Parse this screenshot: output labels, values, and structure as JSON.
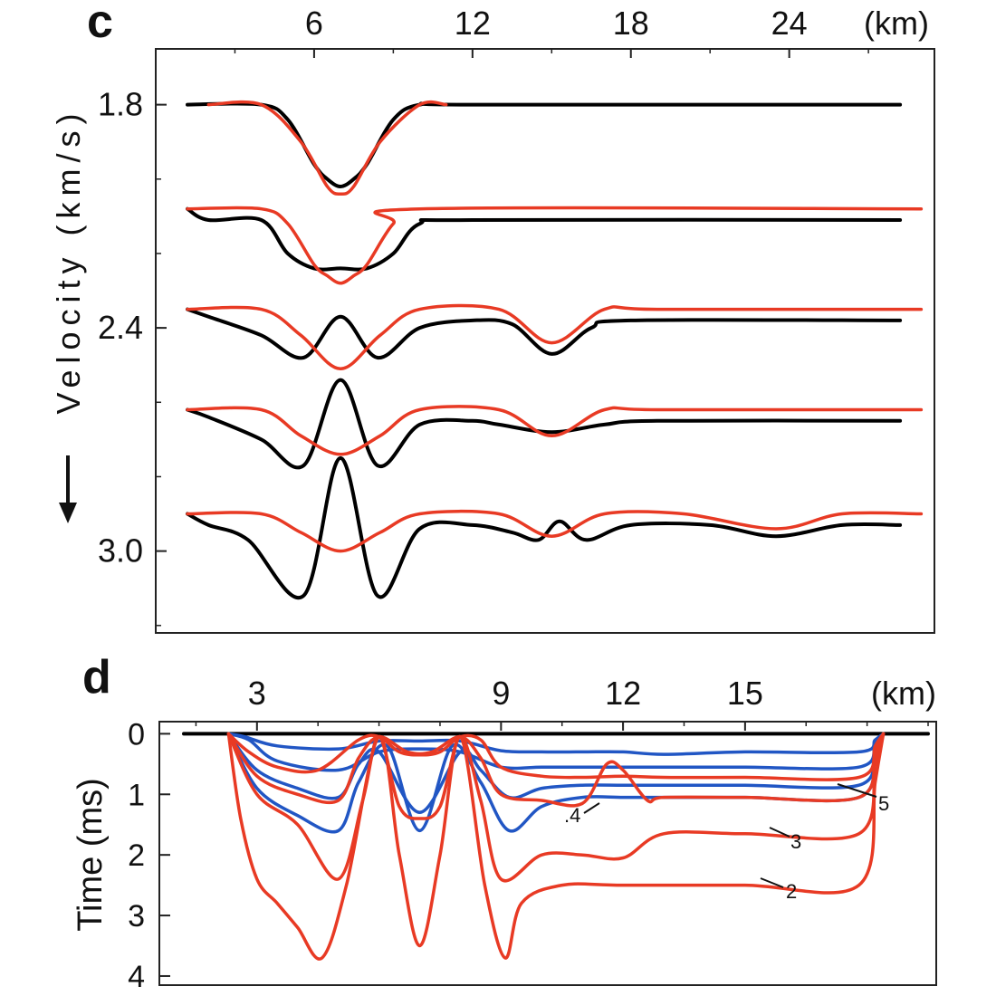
{
  "colors": {
    "red": "#e83a24",
    "black": "#000000",
    "blue": "#2156c4",
    "axis": "#222222"
  },
  "chart_data": [
    {
      "panel": "c",
      "type": "line",
      "panel_label": "c",
      "xlabel": "(km)",
      "ylabel": "Velocity (km/s)",
      "xticks": [
        6,
        12,
        18,
        24
      ],
      "xlim": [
        0,
        29.5
      ],
      "yticks": [
        1.8,
        2.4,
        3.0
      ],
      "ylim": [
        1.65,
        3.22
      ],
      "direction_icon": "down-arrow-icon",
      "series": [
        {
          "name": "trace1-black",
          "color": "black",
          "x": [
            1.2,
            4,
            5,
            6,
            6.5,
            7,
            7.5,
            8,
            9,
            10,
            12,
            28.2
          ],
          "y": [
            1.8,
            1.8,
            1.84,
            1.96,
            2.0,
            2.02,
            2.0,
            1.96,
            1.84,
            1.8,
            1.8,
            1.8
          ]
        },
        {
          "name": "trace1-red",
          "color": "red",
          "x": [
            2,
            4,
            5.5,
            6.5,
            7,
            7.5,
            8.5,
            10,
            11
          ],
          "y": [
            1.8,
            1.8,
            1.9,
            2.02,
            2.04,
            2.02,
            1.9,
            1.8,
            1.8
          ]
        },
        {
          "name": "trace2-black",
          "color": "black",
          "x": [
            1.2,
            2,
            4,
            5,
            6,
            7,
            8,
            9,
            10,
            12,
            28.2
          ],
          "y": [
            2.08,
            2.11,
            2.11,
            2.2,
            2.24,
            2.24,
            2.24,
            2.2,
            2.12,
            2.11,
            2.11
          ]
        },
        {
          "name": "trace2-red",
          "color": "red",
          "x": [
            1.2,
            4,
            5,
            6,
            6.5,
            7,
            7.5,
            8,
            9,
            10,
            29
          ],
          "y": [
            2.08,
            2.08,
            2.12,
            2.23,
            2.26,
            2.28,
            2.26,
            2.23,
            2.12,
            2.08,
            2.08
          ]
        },
        {
          "name": "trace3-black",
          "color": "black",
          "x": [
            1.2,
            2,
            4,
            5.6,
            7,
            8.4,
            10,
            12,
            13.5,
            15,
            16.5,
            18,
            28.2
          ],
          "y": [
            2.35,
            2.37,
            2.42,
            2.48,
            2.37,
            2.48,
            2.4,
            2.38,
            2.39,
            2.47,
            2.4,
            2.38,
            2.38
          ]
        },
        {
          "name": "trace3-red",
          "color": "red",
          "x": [
            1.2,
            4,
            5.5,
            7,
            8.5,
            10,
            13,
            15,
            17,
            19,
            29
          ],
          "y": [
            2.35,
            2.35,
            2.42,
            2.51,
            2.42,
            2.35,
            2.35,
            2.44,
            2.35,
            2.35,
            2.35
          ]
        },
        {
          "name": "trace4-black",
          "color": "black",
          "x": [
            1.2,
            2,
            4,
            5.6,
            7,
            8.4,
            10,
            12,
            13,
            15,
            17,
            19,
            28.2
          ],
          "y": [
            2.62,
            2.64,
            2.7,
            2.77,
            2.54,
            2.77,
            2.66,
            2.65,
            2.66,
            2.68,
            2.66,
            2.65,
            2.65
          ]
        },
        {
          "name": "trace4-red",
          "color": "red",
          "x": [
            1.2,
            4,
            5.5,
            7,
            8.5,
            10,
            13,
            15,
            17,
            19,
            29
          ],
          "y": [
            2.62,
            2.62,
            2.69,
            2.74,
            2.69,
            2.62,
            2.62,
            2.69,
            2.62,
            2.62,
            2.62
          ]
        },
        {
          "name": "trace5-black",
          "color": "black",
          "x": [
            1.2,
            2,
            3.5,
            5.6,
            7,
            8.4,
            10,
            12,
            13.5,
            14.5,
            15.3,
            16.3,
            18,
            21,
            23.5,
            26,
            28.2
          ],
          "y": [
            2.9,
            2.93,
            2.97,
            3.12,
            2.75,
            3.12,
            2.94,
            2.93,
            2.95,
            2.97,
            2.92,
            2.97,
            2.93,
            2.93,
            2.96,
            2.93,
            2.93
          ]
        },
        {
          "name": "trace5-red",
          "color": "red",
          "x": [
            1.2,
            4,
            5.5,
            7,
            8.5,
            10,
            13,
            15,
            17,
            20,
            23.5,
            26,
            29
          ],
          "y": [
            2.9,
            2.9,
            2.95,
            3.0,
            2.95,
            2.9,
            2.9,
            2.96,
            2.9,
            2.9,
            2.94,
            2.9,
            2.9
          ]
        }
      ]
    },
    {
      "panel": "d",
      "type": "line",
      "panel_label": "d",
      "xlabel": "(km)",
      "ylabel": "Time  (ms)",
      "xticks": [
        3,
        9,
        12,
        15
      ],
      "xlim": [
        0.6,
        19.7
      ],
      "yticks": [
        0,
        1,
        2,
        3,
        4
      ],
      "ylim": [
        -0.2,
        4.15
      ],
      "annotations": [
        "2",
        "3",
        ".4",
        "5"
      ],
      "series": [
        {
          "name": "zero-line",
          "color": "black",
          "x": [
            1.2,
            19.5
          ],
          "y": [
            0,
            0
          ]
        },
        {
          "name": "blue-1",
          "color": "blue",
          "x": [
            2.3,
            2.7,
            3.5,
            5,
            6,
            7,
            8,
            9,
            10,
            11,
            12,
            13,
            15,
            17.8,
            18.2,
            18.4
          ],
          "y": [
            0,
            0.05,
            0.2,
            0.25,
            0.12,
            0.12,
            0.12,
            0.28,
            0.3,
            0.3,
            0.3,
            0.34,
            0.3,
            0.3,
            0.1,
            0
          ]
        },
        {
          "name": "blue-2",
          "color": "blue",
          "x": [
            2.3,
            2.8,
            3.5,
            5,
            6,
            7,
            8,
            9,
            10,
            11,
            12,
            13,
            15,
            17.8,
            18.2,
            18.4
          ],
          "y": [
            0,
            0.1,
            0.45,
            0.6,
            0.3,
            0.25,
            0.3,
            0.55,
            0.55,
            0.55,
            0.55,
            0.55,
            0.55,
            0.55,
            0.15,
            0
          ]
        },
        {
          "name": "blue-3",
          "color": "blue",
          "x": [
            2.3,
            3,
            4,
            5,
            5.5,
            6,
            7,
            8,
            8.5,
            9.2,
            10,
            11,
            12,
            13,
            15,
            17.8,
            18.2,
            18.4
          ],
          "y": [
            0,
            0.6,
            0.9,
            1.05,
            0.5,
            0.3,
            1.3,
            0.3,
            0.6,
            1.05,
            0.9,
            0.85,
            0.85,
            0.85,
            0.85,
            0.85,
            0.25,
            0
          ]
        },
        {
          "name": "blue-4",
          "color": "blue",
          "x": [
            2.3,
            3,
            4,
            5,
            5.5,
            6.2,
            7,
            7.8,
            8.5,
            9.2,
            10,
            11,
            12,
            13,
            15,
            17.8,
            18.2,
            18.4
          ],
          "y": [
            0,
            0.9,
            1.35,
            1.6,
            0.8,
            0.2,
            1.6,
            0.2,
            0.8,
            1.6,
            1.2,
            1.05,
            1.05,
            1.05,
            1.05,
            1.05,
            0.3,
            0
          ]
        },
        {
          "name": "red-5",
          "color": "red",
          "x": [
            2.3,
            2.8,
            3.5,
            4.5,
            5.5,
            6,
            6.5,
            7,
            7.5,
            8,
            8.5,
            9,
            10,
            11,
            12,
            13,
            15,
            17.8,
            18.2,
            18.4
          ],
          "y": [
            0,
            0.3,
            0.55,
            0.6,
            0.1,
            0.05,
            0.3,
            0.35,
            0.3,
            0.05,
            0.1,
            0.55,
            0.7,
            0.72,
            0.7,
            0.72,
            0.72,
            0.72,
            0.2,
            0
          ]
        },
        {
          "name": "red-4",
          "color": "red",
          "x": [
            2.3,
            3,
            4,
            5,
            5.5,
            6,
            6.7,
            7.3,
            8,
            8.5,
            9,
            10,
            11,
            11.6,
            12,
            12.6,
            13,
            15,
            17.8,
            18.2,
            18.4
          ],
          "y": [
            0,
            0.7,
            1.0,
            1.1,
            0.4,
            0.05,
            0.3,
            0.3,
            0.05,
            0.4,
            1.0,
            1.1,
            1.15,
            0.5,
            0.6,
            1.1,
            1.05,
            1.05,
            1.05,
            0.3,
            0
          ]
        },
        {
          "name": "red-3",
          "color": "red",
          "x": [
            2.3,
            3,
            4,
            5,
            5.6,
            6,
            6.5,
            7,
            7.5,
            8,
            8.5,
            9,
            10,
            11,
            12,
            13,
            15,
            17.8,
            18.2,
            18.4
          ],
          "y": [
            0,
            1.0,
            1.5,
            2.4,
            1.1,
            0.05,
            1.2,
            1.4,
            1.2,
            0.05,
            1.1,
            2.4,
            2.0,
            2.0,
            2.05,
            1.65,
            1.65,
            1.65,
            0.5,
            0
          ]
        },
        {
          "name": "red-2",
          "color": "red",
          "x": [
            2.3,
            2.6,
            3,
            3.5,
            4,
            4.6,
            5.2,
            6,
            6.5,
            7,
            7.5,
            8,
            8.6,
            9.1,
            9.5,
            10.5,
            12,
            15,
            17.8,
            18.2,
            18.4
          ],
          "y": [
            0,
            1.4,
            2.4,
            2.8,
            3.2,
            3.7,
            2.5,
            0.05,
            2.0,
            3.5,
            2.0,
            0.05,
            2.5,
            3.7,
            2.8,
            2.5,
            2.5,
            2.5,
            2.5,
            0.8,
            0
          ]
        }
      ]
    }
  ]
}
